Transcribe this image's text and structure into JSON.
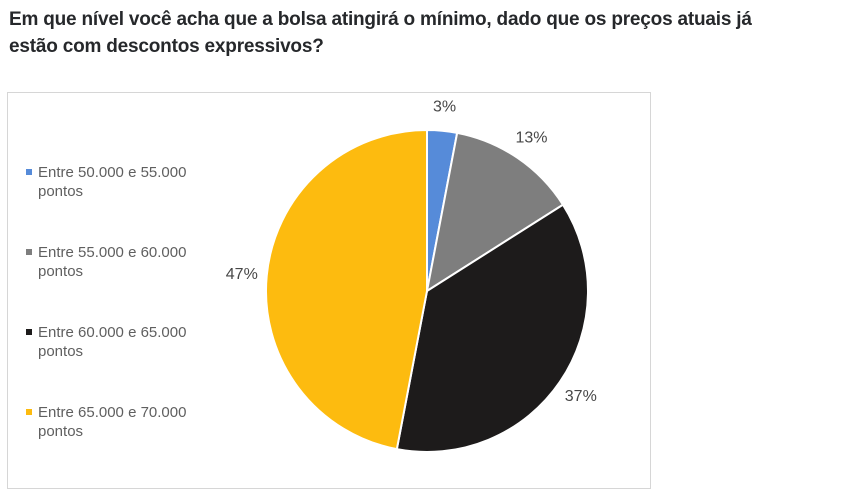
{
  "page_title": {
    "full_text": "Em que nível você acha que a bolsa atingirá o mínimo, dado que os preços atuais já estão com descontos expressivos?",
    "lines": [
      "Em que nível você acha que a bolsa atingirá o mínimo, dado que os preços atuais já",
      "estão com descontos expressivos?"
    ],
    "color": "#26282b"
  },
  "chart_data": {
    "type": "pie",
    "title": "Em que nível você acha que a bolsa atingirá o mínimo, dado que os preços atuais já estão com descontos expressivos?",
    "categories": [
      "Entre 50.000 e 55.000 pontos",
      "Entre 55.000 e 60.000 pontos",
      "Entre 60.000 e 65.000 pontos",
      "Entre 65.000 e 70.000 pontos"
    ],
    "values": [
      3,
      13,
      37,
      47
    ],
    "data_labels": [
      "3%",
      "13%",
      "37%",
      "47%"
    ],
    "colors": [
      "#568BD9",
      "#7E7E7E",
      "#1D1B1B",
      "#FDBB0F"
    ],
    "slice_border_color": "#FFFFFF",
    "label_color": "#474747",
    "label_font_size": 16,
    "legend_position": "left",
    "legend_text_color": "#5F5F5F",
    "start_angle_deg": 0,
    "direction": "clockwise"
  },
  "frame": {
    "border_color": "#D6D6D6",
    "background": "#FFFFFF"
  }
}
